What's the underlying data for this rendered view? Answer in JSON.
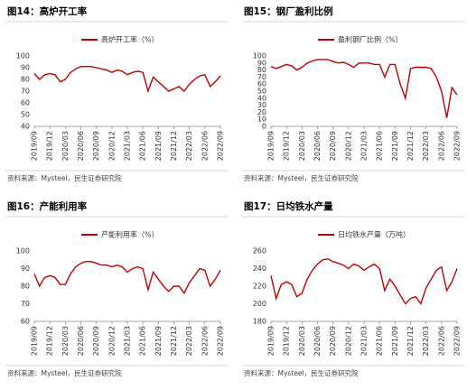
{
  "chart_data": [
    {
      "type": "line",
      "title": "图14：高炉开工率",
      "source": "资料来源：Mysteel，民生证券研究院",
      "categories": [
        "2019/09",
        null,
        null,
        "2019/12",
        null,
        null,
        "2020/03",
        null,
        null,
        "2020/06",
        null,
        null,
        "2020/09",
        null,
        null,
        "2020/12",
        null,
        null,
        "2021/03",
        null,
        null,
        "2021/06",
        null,
        null,
        "2021/09",
        null,
        null,
        "2021/12",
        null,
        null,
        "2022/03",
        null,
        null,
        "2022/06",
        null,
        null,
        "2022/09"
      ],
      "series": [
        {
          "name": "高炉开工率（%）",
          "color": "#c00000",
          "values": [
            85,
            80,
            84,
            85,
            84,
            78,
            80,
            86,
            89,
            91,
            91,
            91,
            90,
            89,
            88,
            86,
            88,
            87,
            84,
            86,
            87,
            86,
            70,
            82,
            78,
            74,
            70,
            72,
            74,
            70,
            76,
            80,
            83,
            84,
            74,
            78,
            83
          ]
        }
      ],
      "ylim": [
        40,
        100
      ],
      "yticks": [
        40,
        50,
        60,
        70,
        80,
        90,
        100
      ],
      "grid": false
    },
    {
      "type": "line",
      "title": "图15：钢厂盈利比例",
      "source": "资料来源：Mysteel，民生证券研究院",
      "categories": [
        "2019/09",
        null,
        null,
        "2019/12",
        null,
        null,
        "2020/03",
        null,
        null,
        "2020/06",
        null,
        null,
        "2020/09",
        null,
        null,
        "2020/12",
        null,
        null,
        "2021/03",
        null,
        null,
        "2021/06",
        null,
        null,
        "2021/09",
        null,
        null,
        "2021/12",
        null,
        null,
        "2022/03",
        null,
        null,
        "2022/06",
        null,
        null,
        "2022/09"
      ],
      "series": [
        {
          "name": "盈利钢厂比例（%）",
          "color": "#c00000",
          "values": [
            85,
            82,
            85,
            88,
            86,
            80,
            84,
            90,
            93,
            95,
            95,
            95,
            92,
            90,
            91,
            88,
            84,
            90,
            90,
            90,
            88,
            88,
            70,
            88,
            88,
            60,
            40,
            82,
            84,
            84,
            84,
            82,
            70,
            50,
            12,
            55,
            45
          ]
        }
      ],
      "ylim": [
        0,
        100
      ],
      "yticks": [
        0,
        10,
        20,
        30,
        40,
        50,
        60,
        70,
        80,
        90,
        100
      ],
      "grid": false
    },
    {
      "type": "line",
      "title": "图16：产能利用率",
      "source": "资料来源：Mysteel，民生证券研究院",
      "categories": [
        "2019/09",
        null,
        null,
        "2019/12",
        null,
        null,
        "2020/03",
        null,
        null,
        "2020/06",
        null,
        null,
        "2020/09",
        null,
        null,
        "2020/12",
        null,
        null,
        "2021/03",
        null,
        null,
        "2021/06",
        null,
        null,
        "2021/09",
        null,
        null,
        "2021/12",
        null,
        null,
        "2022/03",
        null,
        null,
        "2022/06",
        null,
        null,
        "2022/09"
      ],
      "series": [
        {
          "name": "产能利用率（%）",
          "color": "#c00000",
          "values": [
            87,
            80,
            85,
            86,
            85,
            81,
            81,
            87,
            91,
            93,
            94,
            94,
            93,
            92,
            92,
            91,
            92,
            91,
            88,
            90,
            91,
            90,
            78,
            88,
            84,
            80,
            77,
            80,
            80,
            76,
            82,
            86,
            90,
            89,
            80,
            84,
            89
          ]
        }
      ],
      "ylim": [
        60,
        100
      ],
      "yticks": [
        60,
        70,
        80,
        90,
        100
      ],
      "grid": false
    },
    {
      "type": "line",
      "title": "图17：日均铁水产量",
      "source": "资料来源：Mysteel，民生证券研究院",
      "categories": [
        "2019/09",
        null,
        null,
        "2019/12",
        null,
        null,
        "2020/03",
        null,
        null,
        "2020/06",
        null,
        null,
        "2020/09",
        null,
        null,
        "2020/12",
        null,
        null,
        "2021/03",
        null,
        null,
        "2021/06",
        null,
        null,
        "2021/09",
        null,
        null,
        "2021/12",
        null,
        null,
        "2022/03",
        null,
        null,
        "2022/06",
        null,
        null,
        "2022/09"
      ],
      "series": [
        {
          "name": "日均铁水产量（万吨）",
          "color": "#c00000",
          "values": [
            232,
            206,
            222,
            225,
            222,
            208,
            212,
            228,
            238,
            245,
            250,
            251,
            248,
            246,
            244,
            240,
            245,
            243,
            238,
            242,
            245,
            240,
            215,
            228,
            220,
            210,
            200,
            206,
            208,
            200,
            218,
            228,
            238,
            242,
            215,
            225,
            240
          ]
        }
      ],
      "ylim": [
        180,
        260
      ],
      "yticks": [
        180,
        200,
        220,
        240,
        260
      ],
      "grid": false
    }
  ]
}
